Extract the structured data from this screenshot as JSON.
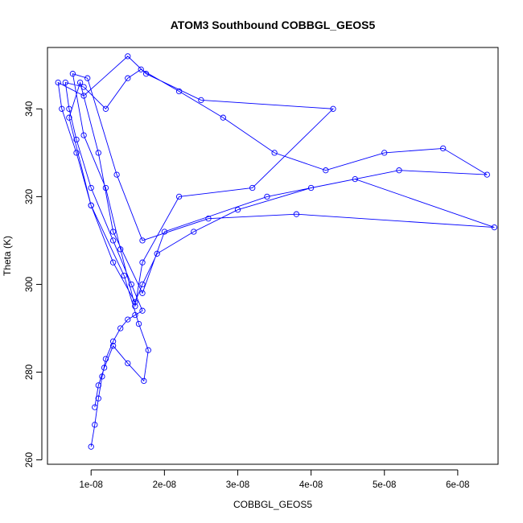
{
  "chart_data": {
    "type": "line",
    "title": "ATOM3 Southbound COBBGL_GEOS5",
    "xlabel": "COBBGL_GEOS5",
    "ylabel": "Theta (K)",
    "x_ticks": [
      "1e-08",
      "2e-08",
      "3e-08",
      "4e-08",
      "5e-08",
      "6e-08"
    ],
    "x_tick_values": [
      1e-08,
      2e-08,
      3e-08,
      4e-08,
      5e-08,
      6e-08
    ],
    "y_ticks": [
      "260",
      "280",
      "300",
      "320",
      "340"
    ],
    "y_tick_values": [
      260,
      280,
      300,
      320,
      340
    ],
    "xlim": [
      4.05e-09,
      6.55e-08
    ],
    "ylim": [
      259,
      354
    ],
    "grid": false,
    "marker": "open-circle",
    "line_color": "#0000ff",
    "series": [
      {
        "x": [
          1e-08,
          1.05e-08,
          1.1e-08,
          1.15e-08,
          1.2e-08,
          1.3e-08,
          1.4e-08,
          1.5e-08,
          1.6e-08,
          1.7e-08,
          1.55e-08,
          1.3e-08,
          1e-08,
          8e-09,
          7e-09,
          6.5e-09,
          9e-09,
          1.2e-08,
          1.5e-08,
          1.68e-08,
          2.2e-08,
          2.8e-08,
          3.5e-08,
          4.2e-08,
          5e-08,
          5.8e-08,
          6.4e-08,
          5.2e-08,
          4e-08,
          3e-08,
          2.4e-08,
          1.9e-08,
          1.7e-08,
          1.6e-08,
          1.3e-08,
          1e-08,
          8e-09,
          6e-09,
          5.5e-09,
          9e-09,
          1.5e-08,
          1.75e-08,
          2.5e-08,
          4.3e-08,
          3.2e-08,
          2.2e-08,
          1.7e-08,
          1.6e-08,
          1.4e-08,
          1.2e-08,
          9e-09,
          7.5e-09,
          9.5e-09,
          1.35e-08,
          1.7e-08,
          2.6e-08,
          3.8e-08,
          6.5e-08,
          4.6e-08,
          3.4e-08,
          2e-08,
          1.7e-08,
          1.3e-08,
          1.1e-08,
          8.5e-09,
          7e-09,
          1e-08,
          1.45e-08,
          1.65e-08,
          1.78e-08,
          1.72e-08,
          1.5e-08,
          1.3e-08,
          1.18e-08,
          1.1e-08,
          1.05e-08
        ],
        "y": [
          263,
          268,
          274,
          279,
          283,
          287,
          290,
          292,
          293,
          294,
          300,
          310,
          322,
          333,
          340,
          346,
          345,
          340,
          347,
          349,
          344,
          338,
          330,
          326,
          330,
          331,
          325,
          326,
          322,
          317,
          312,
          307,
          300,
          296,
          305,
          318,
          330,
          340,
          346,
          343,
          352,
          348,
          342,
          340,
          322,
          320,
          305,
          295,
          308,
          322,
          334,
          348,
          347,
          325,
          310,
          315,
          316,
          313,
          324,
          320,
          312,
          298,
          312,
          330,
          346,
          338,
          318,
          302,
          291,
          285,
          278,
          282,
          286,
          281,
          277,
          272
        ]
      }
    ]
  }
}
